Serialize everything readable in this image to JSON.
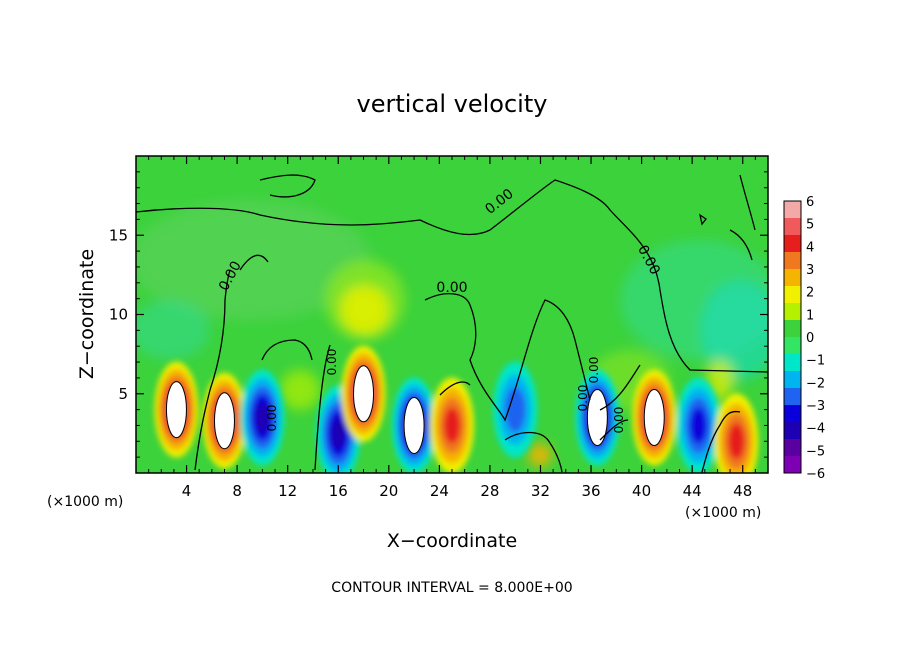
{
  "chart_data": {
    "type": "heatmap",
    "title": "vertical velocity",
    "xlabel": "X−coordinate",
    "ylabel": "Z−coordinate",
    "x_unit_left": "(×1000 m)",
    "x_unit_right": "(×1000 m)",
    "xlim": [
      0,
      50
    ],
    "ylim": [
      0,
      20
    ],
    "x_ticks": [
      "4",
      "8",
      "12",
      "16",
      "20",
      "24",
      "28",
      "32",
      "36",
      "40",
      "44",
      "48"
    ],
    "y_ticks": [
      "5",
      "10",
      "15"
    ],
    "colorbar": {
      "ticks": [
        "6",
        "5",
        "4",
        "3",
        "2",
        "1",
        "0",
        "−1",
        "−2",
        "−3",
        "−4",
        "−5",
        "−6"
      ],
      "colors": [
        "#f4a9a9",
        "#f05a5a",
        "#e61e1e",
        "#f0781e",
        "#f5b400",
        "#f0f000",
        "#b4f000",
        "#3cd23c",
        "#32e664",
        "#00e6c8",
        "#00b4f0",
        "#1e64f0",
        "#0a00dc",
        "#1e00b4",
        "#5a00a0",
        "#7d00b4"
      ]
    },
    "contour_labels": [
      "0.00",
      "0.00",
      "0.00",
      "0.00",
      "0.00",
      "0.00",
      "0.00",
      "0.00",
      "0.00"
    ],
    "contour_interval": "CONTOUR INTERVAL = 8.000E+00",
    "features": [
      {
        "x": 3.2,
        "z": 4.0,
        "w": 6
      },
      {
        "x": 7.0,
        "z": 3.3,
        "w": 6
      },
      {
        "x": 10.0,
        "z": 3.5,
        "w": -5
      },
      {
        "x": 16.0,
        "z": 2.5,
        "w": -5
      },
      {
        "x": 18.0,
        "z": 5.0,
        "w": 6
      },
      {
        "x": 22.0,
        "z": 3.0,
        "w": -6
      },
      {
        "x": 25.0,
        "z": 3.0,
        "w": 4
      },
      {
        "x": 30.0,
        "z": 4.0,
        "w": -3
      },
      {
        "x": 36.5,
        "z": 3.5,
        "w": -6
      },
      {
        "x": 41.0,
        "z": 3.5,
        "w": 6
      },
      {
        "x": 44.5,
        "z": 3.0,
        "w": -4
      },
      {
        "x": 47.5,
        "z": 2.0,
        "w": 4
      }
    ]
  }
}
